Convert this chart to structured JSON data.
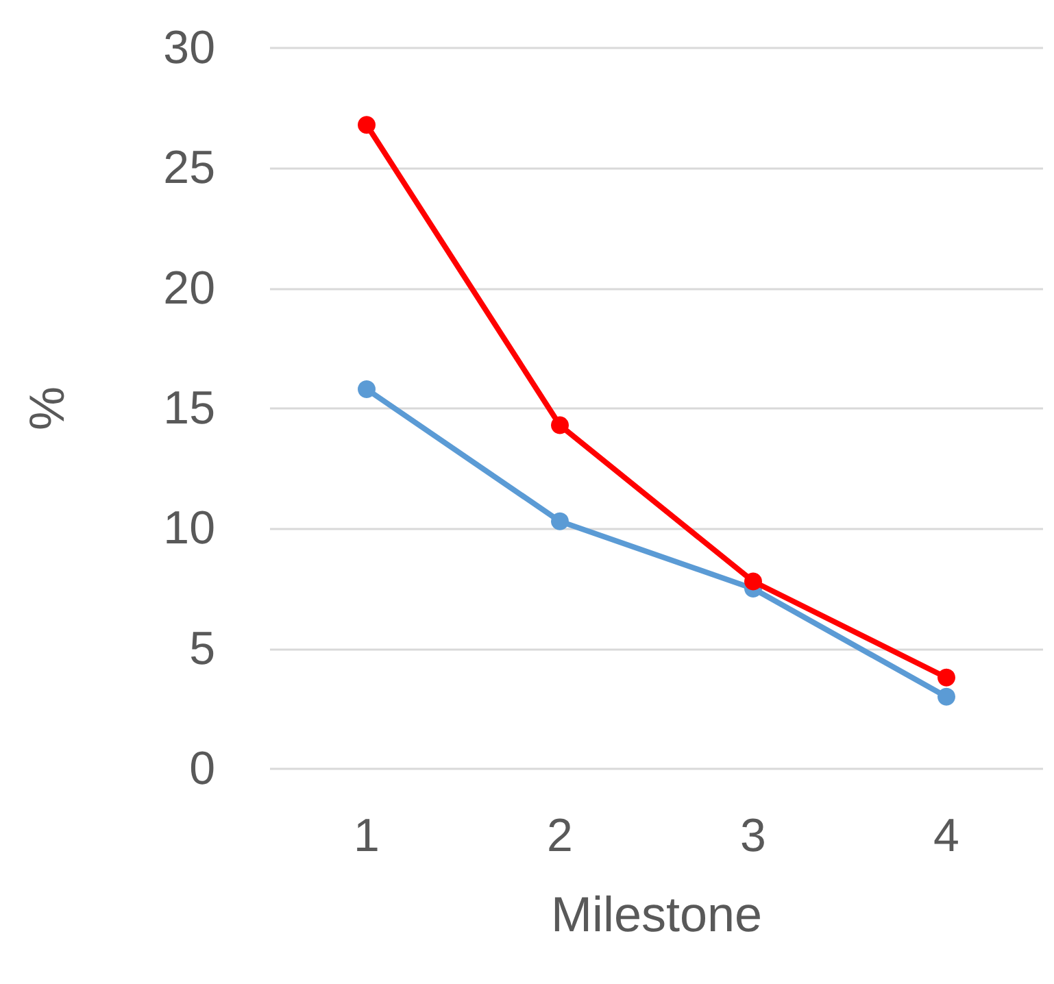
{
  "chart_data": {
    "type": "line",
    "xlabel": "Milestone",
    "ylabel": "%",
    "categories": [
      "1",
      "2",
      "3",
      "4"
    ],
    "series": [
      {
        "color": "#ff0000",
        "values": [
          26.8,
          14.3,
          7.8,
          3.8
        ]
      },
      {
        "color": "#5b9bd5",
        "values": [
          15.8,
          10.3,
          7.5,
          3.0
        ]
      }
    ],
    "ylim": [
      0,
      30
    ],
    "yticks": [
      0,
      5,
      10,
      15,
      20,
      25,
      30
    ],
    "grid": "y",
    "marker": "circle",
    "line_style": "solid"
  }
}
